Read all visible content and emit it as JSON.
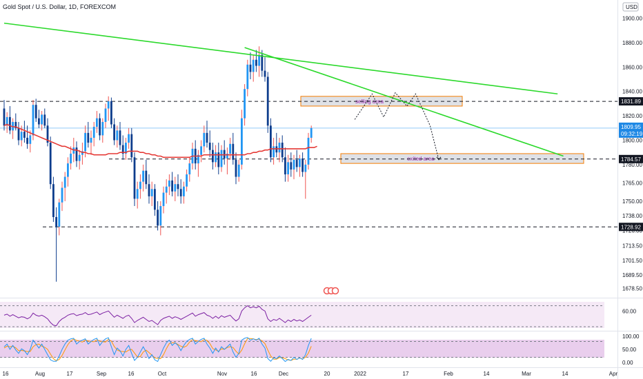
{
  "header": {
    "symbol": "Gold Spot / U.S. Dollar, 1D, FOREXCOM",
    "currency": "USD"
  },
  "colors": {
    "up": "#2196f3",
    "down": "#0d3c8c",
    "up_wick": "#ef5350",
    "ma": "#e53935",
    "trend": "#2bd92b",
    "dash": "#131722",
    "last_price_bg": "#1e88e5",
    "level_bg": "#131722",
    "rsi": "#7b1fa2",
    "stoch_k": "#2196f3",
    "stoch_d": "#ff9800",
    "zone_fill": "#d1d4dc",
    "zone_border": "#f57c00"
  },
  "chart_data": {
    "type": "candlestick",
    "price_axis": {
      "ylim": [
        1672,
        1915
      ],
      "ticks": [
        "1900.00",
        "1880.00",
        "1860.00",
        "1840.00",
        "1820.00",
        "1800.00",
        "1780.00",
        "1765.00",
        "1750.00",
        "1738.00",
        "1726.00",
        "1713.50",
        "1701.50",
        "1689.50",
        "1678.50"
      ],
      "tick_values": [
        1900,
        1880,
        1860,
        1840,
        1820,
        1800,
        1780,
        1765,
        1750,
        1738,
        1726,
        1713.5,
        1701.5,
        1689.5,
        1678.5
      ]
    },
    "x_axis": {
      "labels": [
        "16",
        "Aug",
        "17",
        "Sep",
        "16",
        "Oct",
        "Nov",
        "16",
        "Dec",
        "20",
        "2022",
        "17",
        "Feb",
        "14",
        "Mar",
        "14",
        "Apr"
      ],
      "bars": 192
    },
    "last_price": {
      "value": "1809.95",
      "countdown": "09:32:19",
      "num": 1809.95
    },
    "levels": [
      {
        "label": "1831.89",
        "value": 1831.89
      },
      {
        "label": "1784.57",
        "value": 1784.57
      },
      {
        "label": "1728.92",
        "value": 1728.92
      }
    ],
    "zones": [
      {
        "label": "selling area",
        "from": 1828,
        "to": 1836
      },
      {
        "label": "exited area",
        "from": 1781,
        "to": 1789
      }
    ],
    "candles": [
      {
        "o": 1826,
        "h": 1833,
        "l": 1808,
        "c": 1812
      },
      {
        "o": 1812,
        "h": 1823,
        "l": 1806,
        "c": 1819
      },
      {
        "o": 1819,
        "h": 1828,
        "l": 1805,
        "c": 1808
      },
      {
        "o": 1808,
        "h": 1818,
        "l": 1801,
        "c": 1815
      },
      {
        "o": 1815,
        "h": 1822,
        "l": 1808,
        "c": 1810
      },
      {
        "o": 1810,
        "h": 1815,
        "l": 1796,
        "c": 1800
      },
      {
        "o": 1800,
        "h": 1812,
        "l": 1795,
        "c": 1807
      },
      {
        "o": 1807,
        "h": 1816,
        "l": 1798,
        "c": 1802
      },
      {
        "o": 1802,
        "h": 1812,
        "l": 1793,
        "c": 1797
      },
      {
        "o": 1797,
        "h": 1808,
        "l": 1790,
        "c": 1804
      },
      {
        "o": 1804,
        "h": 1833,
        "l": 1800,
        "c": 1829
      },
      {
        "o": 1829,
        "h": 1834,
        "l": 1815,
        "c": 1818
      },
      {
        "o": 1818,
        "h": 1825,
        "l": 1810,
        "c": 1813
      },
      {
        "o": 1813,
        "h": 1824,
        "l": 1808,
        "c": 1821
      },
      {
        "o": 1821,
        "h": 1826,
        "l": 1810,
        "c": 1812
      },
      {
        "o": 1812,
        "h": 1818,
        "l": 1795,
        "c": 1798
      },
      {
        "o": 1798,
        "h": 1803,
        "l": 1760,
        "c": 1764
      },
      {
        "o": 1764,
        "h": 1770,
        "l": 1733,
        "c": 1737
      },
      {
        "o": 1737,
        "h": 1745,
        "l": 1684,
        "c": 1729
      },
      {
        "o": 1729,
        "h": 1752,
        "l": 1722,
        "c": 1749
      },
      {
        "o": 1749,
        "h": 1766,
        "l": 1742,
        "c": 1761
      },
      {
        "o": 1761,
        "h": 1774,
        "l": 1750,
        "c": 1770
      },
      {
        "o": 1770,
        "h": 1786,
        "l": 1762,
        "c": 1781
      },
      {
        "o": 1781,
        "h": 1795,
        "l": 1776,
        "c": 1789
      },
      {
        "o": 1789,
        "h": 1802,
        "l": 1782,
        "c": 1794
      },
      {
        "o": 1794,
        "h": 1799,
        "l": 1778,
        "c": 1783
      },
      {
        "o": 1783,
        "h": 1792,
        "l": 1776,
        "c": 1788
      },
      {
        "o": 1788,
        "h": 1798,
        "l": 1780,
        "c": 1791
      },
      {
        "o": 1791,
        "h": 1812,
        "l": 1786,
        "c": 1806
      },
      {
        "o": 1806,
        "h": 1815,
        "l": 1794,
        "c": 1798
      },
      {
        "o": 1798,
        "h": 1808,
        "l": 1788,
        "c": 1802
      },
      {
        "o": 1802,
        "h": 1815,
        "l": 1795,
        "c": 1811
      },
      {
        "o": 1811,
        "h": 1824,
        "l": 1806,
        "c": 1818
      },
      {
        "o": 1818,
        "h": 1822,
        "l": 1800,
        "c": 1804
      },
      {
        "o": 1804,
        "h": 1818,
        "l": 1798,
        "c": 1815
      },
      {
        "o": 1815,
        "h": 1830,
        "l": 1810,
        "c": 1826
      },
      {
        "o": 1826,
        "h": 1836,
        "l": 1816,
        "c": 1832
      },
      {
        "o": 1832,
        "h": 1835,
        "l": 1810,
        "c": 1813
      },
      {
        "o": 1813,
        "h": 1818,
        "l": 1796,
        "c": 1800
      },
      {
        "o": 1800,
        "h": 1812,
        "l": 1794,
        "c": 1808
      },
      {
        "o": 1808,
        "h": 1815,
        "l": 1792,
        "c": 1796
      },
      {
        "o": 1796,
        "h": 1804,
        "l": 1784,
        "c": 1789
      },
      {
        "o": 1789,
        "h": 1802,
        "l": 1784,
        "c": 1798
      },
      {
        "o": 1798,
        "h": 1810,
        "l": 1793,
        "c": 1805
      },
      {
        "o": 1805,
        "h": 1810,
        "l": 1782,
        "c": 1786
      },
      {
        "o": 1786,
        "h": 1790,
        "l": 1746,
        "c": 1752
      },
      {
        "o": 1752,
        "h": 1766,
        "l": 1744,
        "c": 1760
      },
      {
        "o": 1760,
        "h": 1772,
        "l": 1752,
        "c": 1766
      },
      {
        "o": 1766,
        "h": 1780,
        "l": 1758,
        "c": 1775
      },
      {
        "o": 1775,
        "h": 1784,
        "l": 1760,
        "c": 1764
      },
      {
        "o": 1764,
        "h": 1772,
        "l": 1748,
        "c": 1754
      },
      {
        "o": 1754,
        "h": 1766,
        "l": 1746,
        "c": 1760
      },
      {
        "o": 1760,
        "h": 1764,
        "l": 1738,
        "c": 1743
      },
      {
        "o": 1743,
        "h": 1750,
        "l": 1726,
        "c": 1730
      },
      {
        "o": 1730,
        "h": 1750,
        "l": 1722,
        "c": 1746
      },
      {
        "o": 1746,
        "h": 1762,
        "l": 1740,
        "c": 1757
      },
      {
        "o": 1757,
        "h": 1768,
        "l": 1748,
        "c": 1762
      },
      {
        "o": 1762,
        "h": 1772,
        "l": 1755,
        "c": 1767
      },
      {
        "o": 1767,
        "h": 1774,
        "l": 1754,
        "c": 1758
      },
      {
        "o": 1758,
        "h": 1770,
        "l": 1750,
        "c": 1764
      },
      {
        "o": 1764,
        "h": 1772,
        "l": 1754,
        "c": 1760
      },
      {
        "o": 1760,
        "h": 1768,
        "l": 1748,
        "c": 1754
      },
      {
        "o": 1754,
        "h": 1766,
        "l": 1748,
        "c": 1762
      },
      {
        "o": 1762,
        "h": 1776,
        "l": 1758,
        "c": 1772
      },
      {
        "o": 1772,
        "h": 1786,
        "l": 1766,
        "c": 1781
      },
      {
        "o": 1781,
        "h": 1798,
        "l": 1776,
        "c": 1793
      },
      {
        "o": 1793,
        "h": 1800,
        "l": 1776,
        "c": 1781
      },
      {
        "o": 1781,
        "h": 1792,
        "l": 1770,
        "c": 1788
      },
      {
        "o": 1788,
        "h": 1800,
        "l": 1782,
        "c": 1795
      },
      {
        "o": 1795,
        "h": 1812,
        "l": 1790,
        "c": 1806
      },
      {
        "o": 1806,
        "h": 1816,
        "l": 1794,
        "c": 1798
      },
      {
        "o": 1798,
        "h": 1808,
        "l": 1786,
        "c": 1792
      },
      {
        "o": 1792,
        "h": 1798,
        "l": 1776,
        "c": 1782
      },
      {
        "o": 1782,
        "h": 1796,
        "l": 1778,
        "c": 1790
      },
      {
        "o": 1790,
        "h": 1798,
        "l": 1772,
        "c": 1778
      },
      {
        "o": 1778,
        "h": 1796,
        "l": 1774,
        "c": 1792
      },
      {
        "o": 1792,
        "h": 1800,
        "l": 1780,
        "c": 1785
      },
      {
        "o": 1785,
        "h": 1794,
        "l": 1772,
        "c": 1789
      },
      {
        "o": 1789,
        "h": 1802,
        "l": 1784,
        "c": 1797
      },
      {
        "o": 1797,
        "h": 1806,
        "l": 1780,
        "c": 1784
      },
      {
        "o": 1784,
        "h": 1790,
        "l": 1764,
        "c": 1770
      },
      {
        "o": 1770,
        "h": 1784,
        "l": 1766,
        "c": 1780
      },
      {
        "o": 1780,
        "h": 1825,
        "l": 1776,
        "c": 1818
      },
      {
        "o": 1818,
        "h": 1846,
        "l": 1812,
        "c": 1842
      },
      {
        "o": 1842,
        "h": 1866,
        "l": 1836,
        "c": 1862
      },
      {
        "o": 1862,
        "h": 1872,
        "l": 1850,
        "c": 1856
      },
      {
        "o": 1856,
        "h": 1870,
        "l": 1848,
        "c": 1866
      },
      {
        "o": 1866,
        "h": 1874,
        "l": 1856,
        "c": 1861
      },
      {
        "o": 1861,
        "h": 1877,
        "l": 1852,
        "c": 1870
      },
      {
        "o": 1870,
        "h": 1874,
        "l": 1852,
        "c": 1857
      },
      {
        "o": 1857,
        "h": 1868,
        "l": 1848,
        "c": 1852
      },
      {
        "o": 1852,
        "h": 1856,
        "l": 1806,
        "c": 1812
      },
      {
        "o": 1812,
        "h": 1818,
        "l": 1782,
        "c": 1786
      },
      {
        "o": 1786,
        "h": 1802,
        "l": 1780,
        "c": 1795
      },
      {
        "o": 1795,
        "h": 1806,
        "l": 1786,
        "c": 1790
      },
      {
        "o": 1790,
        "h": 1802,
        "l": 1782,
        "c": 1798
      },
      {
        "o": 1798,
        "h": 1804,
        "l": 1782,
        "c": 1786
      },
      {
        "o": 1786,
        "h": 1794,
        "l": 1766,
        "c": 1772
      },
      {
        "o": 1772,
        "h": 1788,
        "l": 1766,
        "c": 1782
      },
      {
        "o": 1782,
        "h": 1790,
        "l": 1770,
        "c": 1776
      },
      {
        "o": 1776,
        "h": 1788,
        "l": 1768,
        "c": 1784
      },
      {
        "o": 1784,
        "h": 1792,
        "l": 1774,
        "c": 1778
      },
      {
        "o": 1778,
        "h": 1788,
        "l": 1770,
        "c": 1785
      },
      {
        "o": 1785,
        "h": 1790,
        "l": 1770,
        "c": 1774
      },
      {
        "o": 1774,
        "h": 1784,
        "l": 1752,
        "c": 1780
      },
      {
        "o": 1780,
        "h": 1806,
        "l": 1776,
        "c": 1802
      },
      {
        "o": 1802,
        "h": 1812,
        "l": 1798,
        "c": 1809.95
      }
    ],
    "ma": [
      1812,
      1813,
      1812,
      1811,
      1811,
      1810,
      1809,
      1808,
      1807,
      1806,
      1805,
      1804,
      1803,
      1802,
      1801,
      1800,
      1799,
      1798,
      1797,
      1796,
      1795,
      1795,
      1794,
      1793,
      1792,
      1792,
      1791,
      1790,
      1790,
      1789,
      1789,
      1788,
      1788,
      1788,
      1788,
      1788,
      1789,
      1789,
      1789,
      1789,
      1790,
      1790,
      1790,
      1791,
      1791,
      1791,
      1791,
      1790,
      1790,
      1789,
      1789,
      1788,
      1788,
      1787,
      1787,
      1786,
      1786,
      1786,
      1786,
      1786,
      1786,
      1786,
      1786,
      1786,
      1786,
      1787,
      1787,
      1787,
      1787,
      1788,
      1788,
      1788,
      1788,
      1788,
      1788,
      1788,
      1788,
      1788,
      1788,
      1788,
      1788,
      1788,
      1788,
      1788,
      1789,
      1789,
      1790,
      1790,
      1791,
      1791,
      1792,
      1792,
      1793,
      1793,
      1793,
      1793,
      1793,
      1793,
      1793,
      1793,
      1793,
      1793,
      1793,
      1793,
      1793,
      1794,
      1794,
      1794,
      1795
    ],
    "trendlines": [
      {
        "name": "",
        "from": [
          0,
          1896
        ],
        "to": [
          191,
          1838
        ]
      },
      {
        "name": "",
        "from": [
          83,
          1876
        ],
        "to": [
          193,
          1787
        ]
      }
    ],
    "path_projection": [
      [
        121,
        1817
      ],
      [
        127,
        1838
      ],
      [
        131,
        1819
      ],
      [
        135,
        1839
      ],
      [
        139,
        1828
      ],
      [
        142,
        1838
      ],
      [
        147,
        1812
      ],
      [
        150,
        1784
      ]
    ],
    "rsi": {
      "ylim": [
        25,
        80
      ],
      "ticks": [
        "60.00"
      ],
      "tick_values": [
        60
      ],
      "upper": 70,
      "lower": 30,
      "values": [
        52,
        54,
        50,
        53,
        50,
        47,
        49,
        48,
        45,
        48,
        56,
        52,
        50,
        52,
        49,
        45,
        38,
        33,
        32,
        40,
        45,
        48,
        52,
        54,
        55,
        51,
        53,
        54,
        57,
        53,
        54,
        56,
        58,
        53,
        56,
        58,
        60,
        54,
        48,
        52,
        49,
        46,
        50,
        52,
        46,
        38,
        42,
        45,
        48,
        44,
        40,
        42,
        38,
        34,
        42,
        46,
        48,
        50,
        46,
        49,
        47,
        44,
        47,
        50,
        53,
        56,
        50,
        53,
        55,
        57,
        52,
        50,
        46,
        50,
        46,
        51,
        48,
        50,
        52,
        46,
        41,
        45,
        60,
        66,
        70,
        66,
        68,
        66,
        69,
        63,
        60,
        45,
        40,
        44,
        42,
        46,
        42,
        38,
        43,
        40,
        44,
        41,
        43,
        40,
        44,
        48,
        52
      ]
    },
    "stoch": {
      "ylim": [
        -10,
        110
      ],
      "ticks": [
        "100.00",
        "50.00",
        "0.00"
      ],
      "tick_values": [
        100,
        50,
        0
      ],
      "upper": 80,
      "lower": 20,
      "k": [
        60,
        70,
        50,
        65,
        48,
        35,
        52,
        45,
        30,
        50,
        85,
        70,
        55,
        70,
        50,
        30,
        10,
        5,
        5,
        25,
        50,
        70,
        85,
        90,
        92,
        70,
        80,
        85,
        90,
        70,
        80,
        88,
        92,
        65,
        80,
        90,
        94,
        60,
        30,
        55,
        45,
        25,
        50,
        65,
        35,
        8,
        20,
        40,
        60,
        40,
        15,
        30,
        10,
        4,
        30,
        55,
        75,
        85,
        65,
        75,
        65,
        45,
        65,
        80,
        88,
        92,
        70,
        80,
        88,
        92,
        70,
        55,
        35,
        55,
        40,
        60,
        50,
        60,
        70,
        40,
        20,
        35,
        85,
        92,
        95,
        85,
        90,
        85,
        92,
        70,
        55,
        15,
        5,
        18,
        15,
        25,
        15,
        4,
        12,
        8,
        20,
        12,
        18,
        12,
        30,
        65,
        92
      ],
      "d": [
        55,
        62,
        60,
        62,
        56,
        45,
        46,
        44,
        42,
        42,
        60,
        68,
        70,
        62,
        58,
        50,
        32,
        15,
        7,
        12,
        27,
        48,
        68,
        82,
        89,
        84,
        81,
        78,
        85,
        82,
        80,
        79,
        86,
        82,
        79,
        78,
        88,
        81,
        61,
        48,
        43,
        42,
        40,
        47,
        50,
        36,
        21,
        23,
        40,
        47,
        38,
        28,
        18,
        15,
        15,
        30,
        53,
        72,
        75,
        75,
        68,
        62,
        58,
        63,
        78,
        87,
        83,
        81,
        79,
        87,
        84,
        72,
        53,
        48,
        43,
        52,
        50,
        57,
        60,
        57,
        43,
        32,
        47,
        71,
        91,
        91,
        90,
        87,
        89,
        82,
        72,
        47,
        25,
        13,
        13,
        19,
        18,
        15,
        10,
        8,
        13,
        13,
        17,
        14,
        20,
        36,
        62
      ]
    }
  }
}
